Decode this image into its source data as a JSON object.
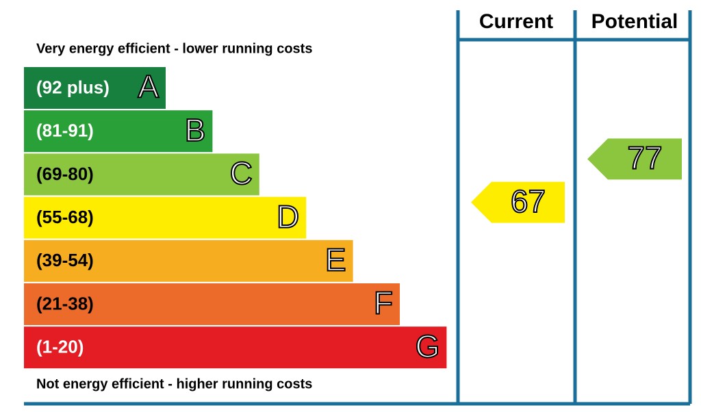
{
  "top_note": "Very energy efficient - lower running costs",
  "bottom_note": "Not energy efficient - higher running costs",
  "columns": [
    "Current",
    "Potential"
  ],
  "bands": [
    {
      "range": "(92 plus)",
      "letter": "A",
      "color": "#17803f"
    },
    {
      "range": "(81-91)",
      "letter": "B",
      "color": "#2aa038"
    },
    {
      "range": "(69-80)",
      "letter": "C",
      "color": "#8cc63f"
    },
    {
      "range": "(55-68)",
      "letter": "D",
      "color": "#ffed00"
    },
    {
      "range": "(39-54)",
      "letter": "E",
      "color": "#f6ae20"
    },
    {
      "range": "(21-38)",
      "letter": "F",
      "color": "#ec6a2a"
    },
    {
      "range": "(1-20)",
      "letter": "G",
      "color": "#e31d23"
    }
  ],
  "ratings": [
    {
      "value": 67,
      "color": "#ffed00"
    },
    {
      "value": 77,
      "color": "#8cc63f"
    }
  ]
}
